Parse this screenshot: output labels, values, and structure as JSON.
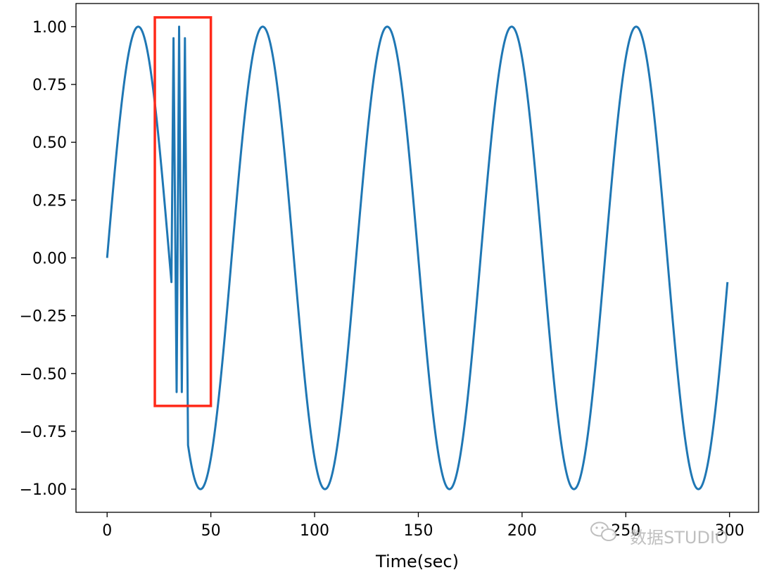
{
  "chart_data": {
    "type": "line",
    "title": "",
    "xlabel": "Time(sec)",
    "ylabel": "",
    "xlim": [
      -15,
      314
    ],
    "ylim": [
      -1.1,
      1.1
    ],
    "x_ticks": [
      0,
      50,
      100,
      150,
      200,
      250,
      300
    ],
    "x_tick_labels": [
      "0",
      "50",
      "100",
      "150",
      "200",
      "250",
      "300"
    ],
    "y_ticks": [
      1.0,
      0.75,
      0.5,
      0.25,
      0.0,
      -0.25,
      -0.5,
      -0.75,
      -1.0
    ],
    "y_tick_labels": [
      "1.00",
      "0.75",
      "0.50",
      "0.25",
      "0.00",
      "−0.25",
      "−0.50",
      "−0.75",
      "−1.00"
    ],
    "grid": false,
    "series": [
      {
        "color": "#1f77b4",
        "base": "sine",
        "period": 60,
        "amplitude": 1.0,
        "x_start": 0,
        "x_end": 299,
        "anomaly": {
          "x_start": 31,
          "x_end": 39,
          "points": [
            [
              31,
              -0.1
            ],
            [
              32,
              0.95
            ],
            [
              33.5,
              -0.58
            ],
            [
              34.7,
              1.0
            ],
            [
              36,
              -0.58
            ],
            [
              37.5,
              0.95
            ],
            [
              39,
              -0.81
            ]
          ]
        }
      }
    ],
    "annotations": [
      {
        "type": "rectangle",
        "color": "#ff2a1a",
        "x_range": [
          23,
          50
        ],
        "y_range": [
          -0.64,
          1.04
        ]
      }
    ]
  },
  "watermark": {
    "icon": "wechat-icon",
    "text": "数据STUDIO"
  }
}
